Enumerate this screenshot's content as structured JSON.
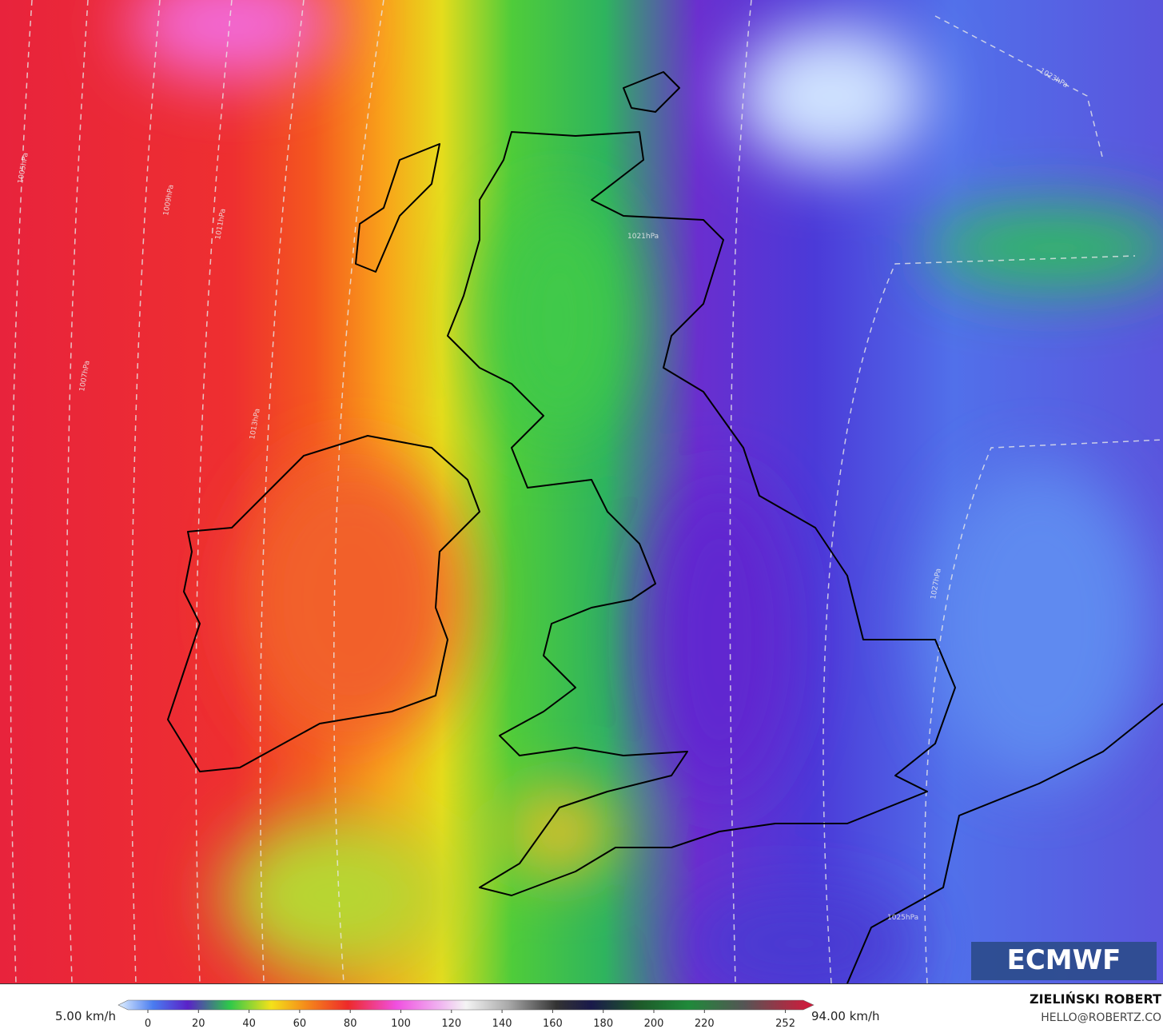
{
  "map": {
    "isobar_labels": [
      "1005hPa",
      "1007hPa",
      "1009hPa",
      "1011hPa",
      "1013hPa",
      "1021hPa",
      "1023hPa",
      "1025hPa",
      "1027hPa"
    ],
    "logo": "ECMWF"
  },
  "colorbar": {
    "min_label": "5.00 km/h",
    "max_label": "94.00 km/h",
    "ticks": [
      0,
      20,
      40,
      60,
      80,
      100,
      120,
      140,
      160,
      180,
      200,
      220,
      252
    ]
  },
  "credit": {
    "author": "ZIELIŃSKI ROBERT",
    "contact": "HELLO@ROBERTZ.CO"
  }
}
